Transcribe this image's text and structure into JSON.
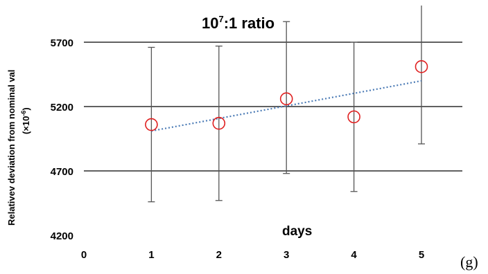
{
  "chart_data": {
    "type": "scatter",
    "title_main": "10",
    "title_sup": "7",
    "title_rest": ":1 ratio",
    "xlabel": "days",
    "ylabel_line1": "Relativev deviation from nominal val",
    "ylabel_line2_pre": "(×10",
    "ylabel_line2_sup": "-6",
    "ylabel_line2_post": ")",
    "panel_label": "(g)",
    "xlim": [
      0,
      5
    ],
    "ylim": [
      4200,
      5700
    ],
    "x_ticks": [
      "0",
      "1",
      "2",
      "3",
      "4",
      "5"
    ],
    "y_ticks": [
      "4200",
      "4700",
      "5200",
      "5700"
    ],
    "gridlines_y": [
      4700,
      5200,
      5700
    ],
    "points": [
      {
        "x": 1,
        "y": 5060,
        "err_low": 4460,
        "err_high": 5660
      },
      {
        "x": 2,
        "y": 5070,
        "err_low": 4470,
        "err_high": 5670
      },
      {
        "x": 3,
        "y": 5260,
        "err_low": 4680,
        "err_high": 5860
      },
      {
        "x": 4,
        "y": 5120,
        "err_low": 4540,
        "err_high": 5700
      },
      {
        "x": 5,
        "y": 5510,
        "err_low": 4910,
        "err_high": 6110
      }
    ],
    "trendline": {
      "x": [
        1,
        5
      ],
      "y": [
        5010,
        5400
      ]
    },
    "colors": {
      "marker": "#e02020",
      "trend": "#4a7ab5",
      "errorbar": "#555555",
      "grid": "#000000"
    },
    "grid": true,
    "legend": "none"
  }
}
